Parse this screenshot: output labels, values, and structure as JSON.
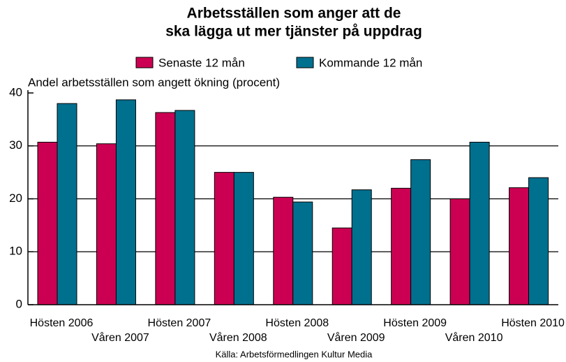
{
  "chart_data": {
    "type": "bar",
    "title": [
      "Arbetsställen som anger att de",
      "ska lägga ut mer tjänster på uppdrag"
    ],
    "ylabel": "Andel arbetsställen som angett ökning (procent)",
    "source": "Källa: Arbetsförmedlingen Kultur Media",
    "categories": [
      "Hösten 2006",
      "Våren 2007",
      "Hösten 2007",
      "Våren 2008",
      "Hösten 2008",
      "Våren 2009",
      "Hösten 2009",
      "Våren 2010",
      "Hösten 2010"
    ],
    "series": [
      {
        "name": "Senaste 12 mån",
        "color": "#cc0052",
        "values": [
          30.7,
          30.4,
          36.3,
          25,
          20.3,
          14.5,
          22,
          20,
          22.1
        ]
      },
      {
        "name": "Kommande 12 mån",
        "color": "#00708f",
        "values": [
          38,
          38.7,
          36.7,
          25,
          19.4,
          21.7,
          27.4,
          30.7,
          24
        ]
      }
    ],
    "ylim": [
      0,
      40
    ],
    "yticks": [
      0,
      10,
      20,
      30,
      40
    ],
    "grid": true
  }
}
